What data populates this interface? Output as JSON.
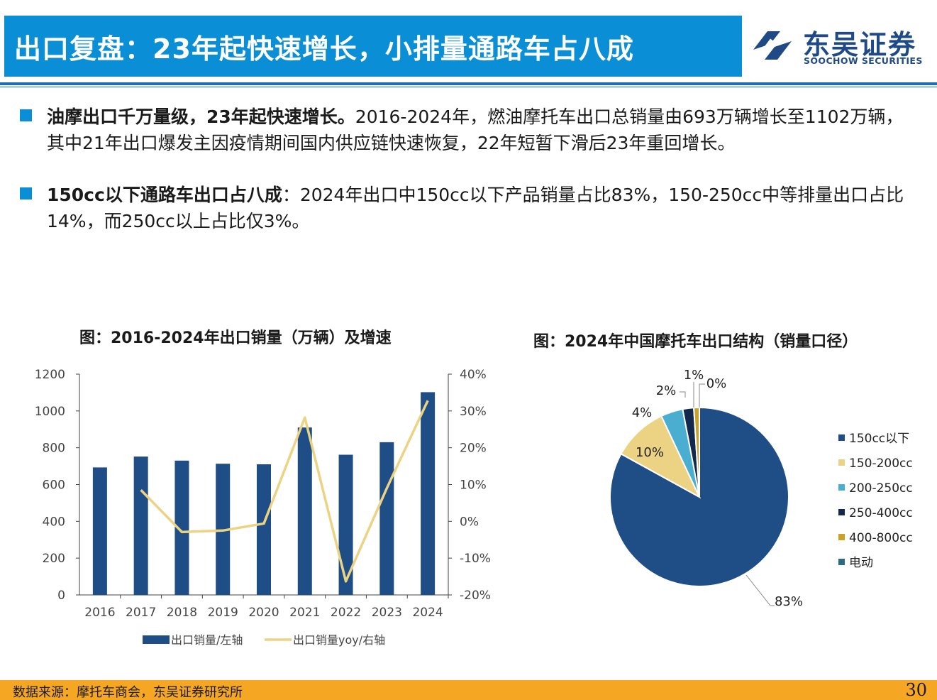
{
  "header": {
    "title": "出口复盘：23年起快速增长，小排量通路车占八成",
    "logo_cn": "东吴证券",
    "logo_en": "SOOCHOW SECURITIES"
  },
  "bullets": [
    {
      "bold": "油摩出口千万量级，23年起快速增长。",
      "text": "2016-2024年，燃油摩托车出口总销量由693万辆增长至1102万辆，其中21年出口爆发主因疫情期间国内供应链快速恢复，22年短暂下滑后23年重回增长。"
    },
    {
      "bold": "150cc以下通路车出口占八成",
      "text": "：2024年出口中150cc以下产品销量占比83%，150-250cc中等排量出口占比14%，而250cc以上占比仅3%。"
    }
  ],
  "colors": {
    "accent": "#0a8fd6",
    "bar": "#1f4e86",
    "line": "#ecd383",
    "footer": "#f5a623"
  },
  "chart_data": [
    {
      "type": "bar",
      "title": "图：2016-2024年出口销量（万辆）及增速",
      "categories": [
        "2016",
        "2017",
        "2018",
        "2019",
        "2020",
        "2021",
        "2022",
        "2023",
        "2024"
      ],
      "y_left_ticks": [
        "0",
        "200",
        "400",
        "600",
        "800",
        "1000",
        "1200"
      ],
      "y_right_ticks": [
        "-20%",
        "-10%",
        "0%",
        "10%",
        "20%",
        "30%",
        "40%"
      ],
      "ylim_left": [
        0,
        1200
      ],
      "ylim_right": [
        -20,
        40
      ],
      "series": [
        {
          "name": "出口销量/左轴",
          "type": "bar",
          "axis": "left",
          "color": "#1f4e86",
          "values": [
            693,
            752,
            730,
            713,
            710,
            910,
            762,
            830,
            1102
          ]
        },
        {
          "name": "出口销量yoy/右轴",
          "type": "line",
          "axis": "right",
          "color": "#ecd383",
          "values": [
            null,
            8.5,
            -2.9,
            -2.5,
            -0.6,
            28.2,
            -16.3,
            9.0,
            32.8
          ]
        }
      ],
      "legend_position": "bottom",
      "grid": false
    },
    {
      "type": "pie",
      "title": "图：2024年中国摩托车出口结构（销量口径）",
      "labels": [
        "150cc以下",
        "150-200cc",
        "200-250cc",
        "250-400cc",
        "400-800cc",
        "电动"
      ],
      "values": [
        83,
        10,
        4,
        2,
        1,
        0
      ],
      "value_labels": [
        "83%",
        "10%",
        "4%",
        "2%",
        "1%",
        "0%"
      ],
      "colors": [
        "#1f4e86",
        "#ecd383",
        "#4aaed1",
        "#13294b",
        "#c9a227",
        "#2b6a80"
      ],
      "legend_position": "right"
    }
  ],
  "footer": {
    "source": "数据来源：摩托车商会，东吴证券研究所",
    "page": "30"
  }
}
